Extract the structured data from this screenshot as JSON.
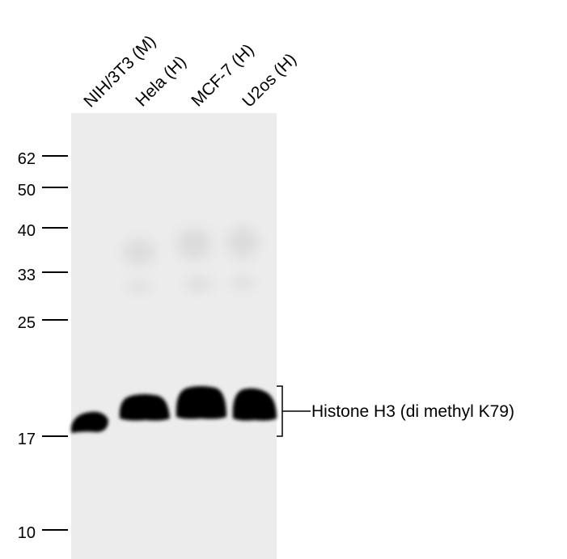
{
  "lanes": [
    {
      "label": "NIH/3T3 (M)"
    },
    {
      "label": "Hela (H)"
    },
    {
      "label": "MCF-7 (H)"
    },
    {
      "label": "U2os (H)"
    }
  ],
  "markers": [
    {
      "label": "62"
    },
    {
      "label": "50"
    },
    {
      "label": "40"
    },
    {
      "label": "33"
    },
    {
      "label": "25"
    },
    {
      "label": "17"
    },
    {
      "label": "10"
    }
  ],
  "band_label": "Histone H3 (di methyl K79)",
  "colors": {
    "membrane": "#ececec",
    "band": "#000000"
  }
}
